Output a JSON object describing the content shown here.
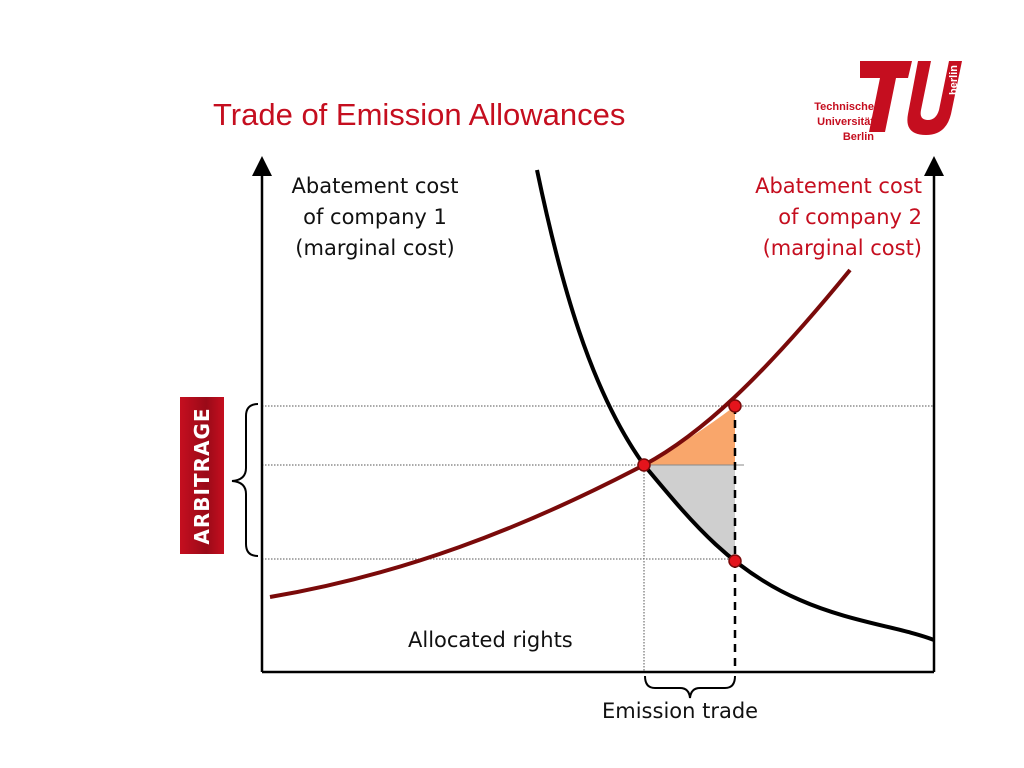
{
  "header": {
    "title": "Trade of Emission Allowances"
  },
  "logo": {
    "lines": [
      "Technische",
      "Universität",
      "Berlin"
    ],
    "side_text": "berlin",
    "color": "#c50e1f"
  },
  "diagram": {
    "curve1_label": [
      "Abatement cost",
      "of company 1",
      "(marginal cost)"
    ],
    "curve2_label": [
      "Abatement cost",
      "of company 2",
      "(marginal cost)"
    ],
    "allocated_rights_label": "Allocated rights",
    "emission_trade_label": "Emission trade",
    "arbitrage_label": "ARBITRAGE",
    "colors": {
      "curve1": "#000000",
      "curve2": "#7a0a0a",
      "gain_upper": "#f9a66b",
      "gain_lower": "#cfcfcf",
      "points": "#e4141c",
      "accent": "#c50e1f"
    }
  }
}
